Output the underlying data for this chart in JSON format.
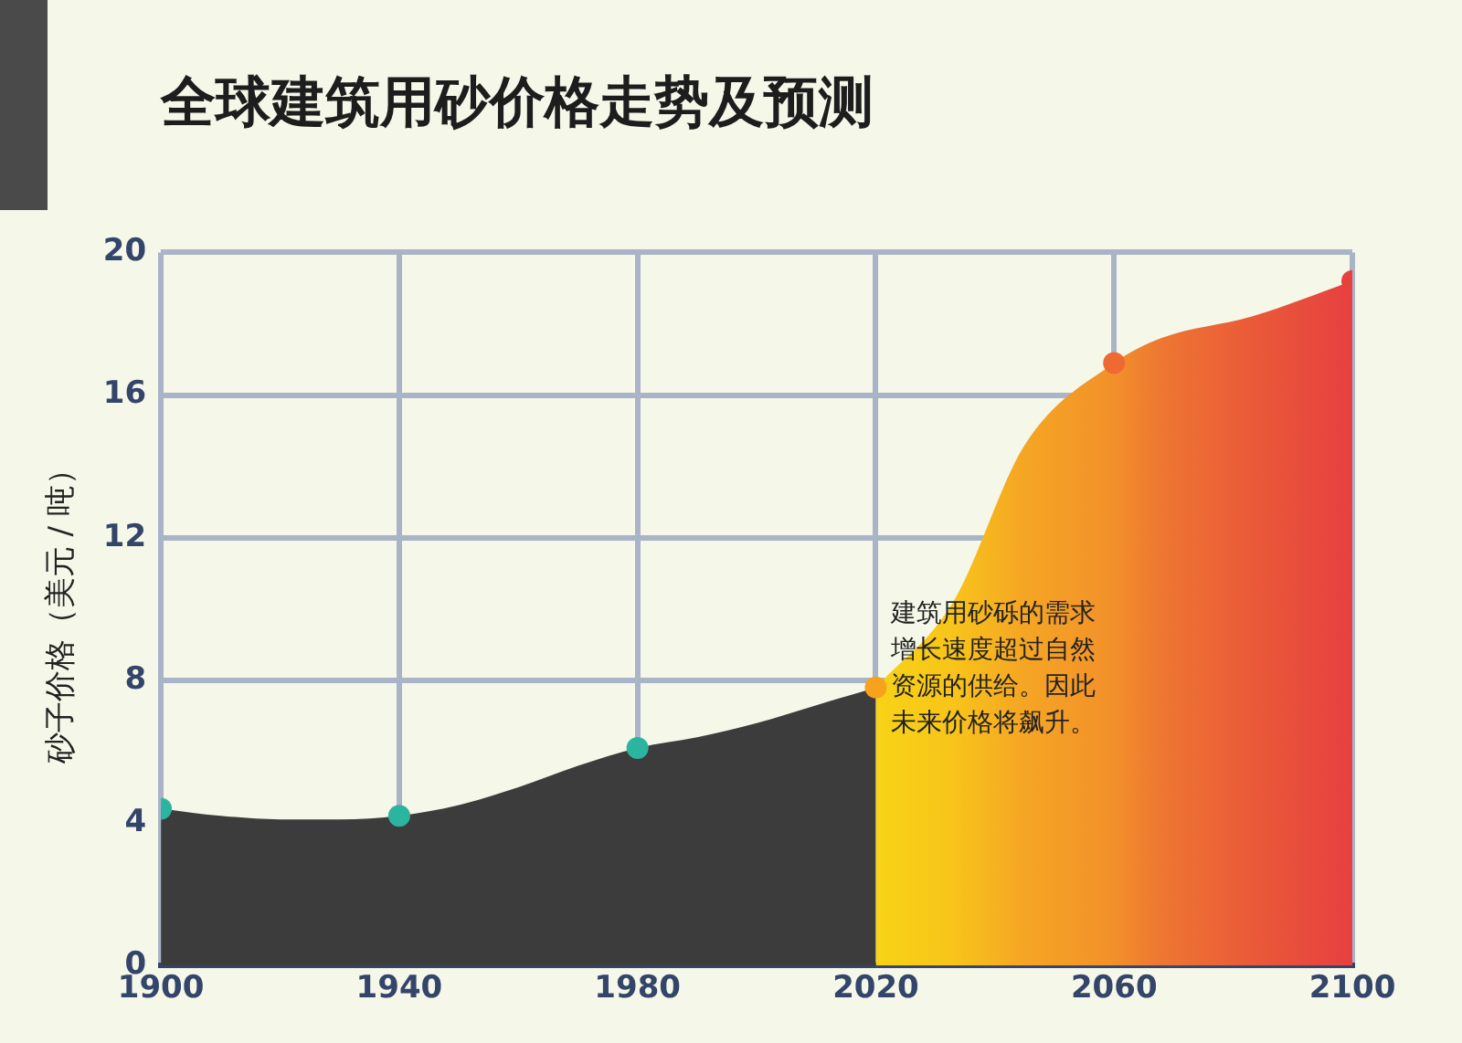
{
  "chart_data": {
    "type": "area",
    "title": "全球建筑用砂价格走势及预测",
    "ylabel": "砂子价格（美元 / 吨）",
    "xlim": [
      1900,
      2100
    ],
    "xticks": [
      1900,
      1940,
      1980,
      2020,
      2060,
      2100
    ],
    "ylim": [
      0,
      20
    ],
    "yticks": [
      0,
      4,
      8,
      12,
      16,
      20
    ],
    "grid": true,
    "legend": false,
    "marker": "none",
    "series": [
      {
        "color": "#3c3c3c",
        "x": [
          1900,
          1910,
          1920,
          1930,
          1940,
          1950,
          1960,
          1970,
          1980,
          1990,
          2000,
          2010,
          2020
        ],
        "values": [
          4.4,
          4.2,
          4.1,
          4.1,
          4.2,
          4.5,
          5.0,
          5.6,
          6.1,
          6.4,
          6.8,
          7.3,
          7.8
        ]
      },
      {
        "type": "area",
        "color": "#f08a2c",
        "colors": [
          "#f7d316",
          "#f8c41a",
          "#f5a524",
          "#f2902a",
          "#ee7632",
          "#ea5a38",
          "#e64040"
        ],
        "x": [
          2020,
          2033,
          2045,
          2060,
          2068,
          2083,
          2100
        ],
        "values": [
          7.8,
          10.2,
          14.6,
          16.9,
          17.6,
          18.2,
          19.2
        ]
      },
      {
        "type": "scatter",
        "marker": "circle",
        "colors": [
          "#2bb5a0",
          "#2bb5a0",
          "#2bb5a0",
          "#f7a21c",
          "#ee6a32",
          "#e8403c"
        ],
        "x": [
          1900,
          1940,
          1980,
          2020,
          2060,
          2100
        ],
        "values": [
          4.4,
          4.2,
          6.1,
          7.8,
          16.9,
          19.2
        ]
      }
    ],
    "annotations": [
      "建筑用砂砾的需求增长速度超过自然资源的供给。因此未来价格将飙升。"
    ]
  }
}
